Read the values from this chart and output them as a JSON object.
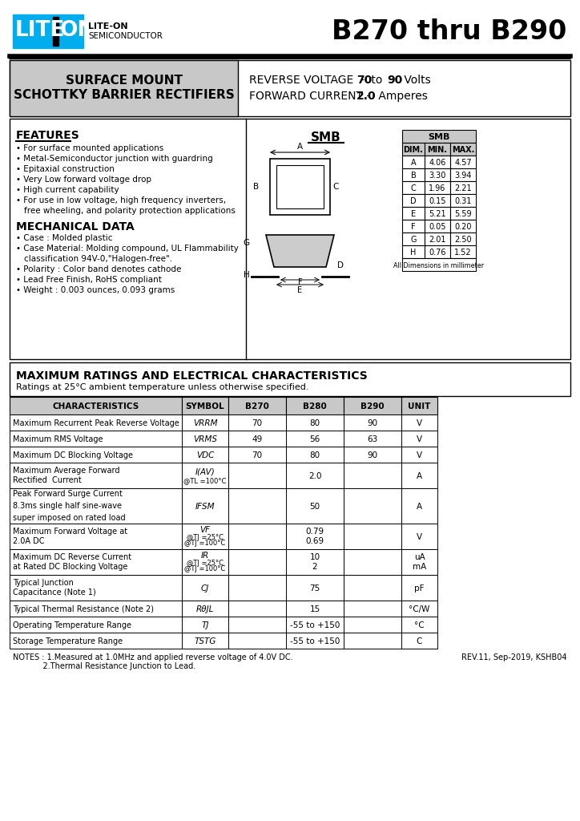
{
  "title": "B270 thru B290",
  "product_type_line1": "SURFACE MOUNT",
  "product_type_line2": "SCHOTTKY BARRIER RECTIFIERS",
  "rev_voltage_pre": "REVERSE VOLTAGE  - ",
  "rev_voltage_bold1": "70",
  "rev_voltage_mid": " to ",
  "rev_voltage_bold2": "90",
  "rev_voltage_post": " Volts",
  "fwd_current_pre": "FORWARD CURRENT - ",
  "fwd_current_bold": "2.0",
  "fwd_current_post": " Amperes",
  "features_title": "FEATURES",
  "features": [
    "For surface mounted applications",
    "Metal-Semiconductor junction with guardring",
    "Epitaxial construction",
    "Very Low forward voltage drop",
    "High current capability",
    "For use in low voltage, high frequency inverters,",
    "  free wheeling, and polarity protection applications"
  ],
  "mech_title": "MECHANICAL DATA",
  "mech": [
    "Case : Molded plastic",
    "Case Material: Molding compound, UL Flammability",
    "  classification 94V-0,\"Halogen-free\".",
    "Polarity : Color band denotes cathode",
    "Lead Free Finish, RoHS compliant",
    "Weight : 0.003 ounces, 0.093 grams"
  ],
  "package": "SMB",
  "dim_table_header": [
    "DIM.",
    "MIN.",
    "MAX."
  ],
  "dim_table": [
    [
      "A",
      "4.06",
      "4.57"
    ],
    [
      "B",
      "3.30",
      "3.94"
    ],
    [
      "C",
      "1.96",
      "2.21"
    ],
    [
      "D",
      "0.15",
      "0.31"
    ],
    [
      "E",
      "5.21",
      "5.59"
    ],
    [
      "F",
      "0.05",
      "0.20"
    ],
    [
      "G",
      "2.01",
      "2.50"
    ],
    [
      "H",
      "0.76",
      "1.52"
    ]
  ],
  "dim_note": "All Dimensions in millimeter",
  "elec_title": "MAXIMUM RATINGS AND ELECTRICAL CHARACTERISTICS",
  "elec_subtitle": "Ratings at 25°C ambient temperature unless otherwise specified.",
  "elec_cols": [
    "CHARACTERISTICS",
    "SYMBOL",
    "B270",
    "B280",
    "B290",
    "UNIT"
  ],
  "notes_line1": "NOTES : 1.Measured at 1.0MHz and applied reverse voltage of 4.0V DC.",
  "notes_line2": "            2.Thermal Resistance Junction to Lead.",
  "rev_info": "REV.11, Sep-2019, KSHB04",
  "cyan_color": "#00aeef",
  "gray_bg": "#c8c8c8",
  "light_gray": "#e8e8e8"
}
